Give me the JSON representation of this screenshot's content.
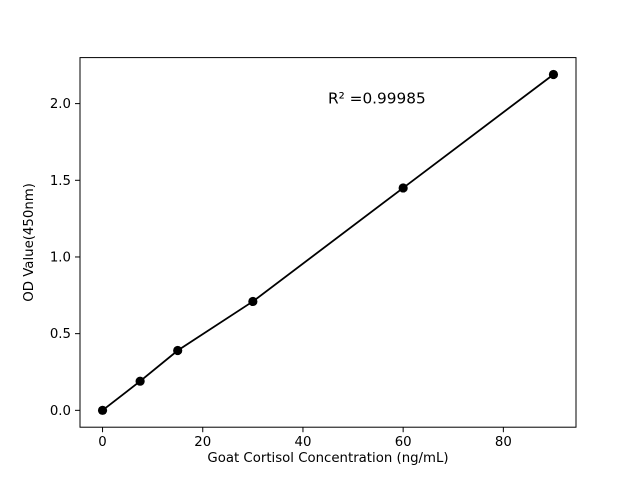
{
  "figure": {
    "background": "#ffffff"
  },
  "chart_data": {
    "type": "line",
    "title": "",
    "xlabel": "Goat Cortisol Concentration (ng/mL)",
    "ylabel": "OD Value(450nm)",
    "x": [
      0,
      7.5,
      15,
      30,
      60,
      90
    ],
    "y": [
      0.0,
      0.19,
      0.39,
      0.71,
      1.45,
      2.19
    ],
    "xticks": [
      0,
      20,
      40,
      60,
      80
    ],
    "yticks": [
      0.0,
      0.5,
      1.0,
      1.5,
      2.0
    ],
    "xlim": [
      -4.5,
      94.5
    ],
    "ylim": [
      -0.11,
      2.3
    ],
    "grid": false,
    "legend": "none",
    "line_color": "#000000",
    "marker_color": "#000000",
    "marker_shape": "circle",
    "annotation": {
      "text": "R² =0.99985",
      "x": 45,
      "y": 2.0
    }
  }
}
